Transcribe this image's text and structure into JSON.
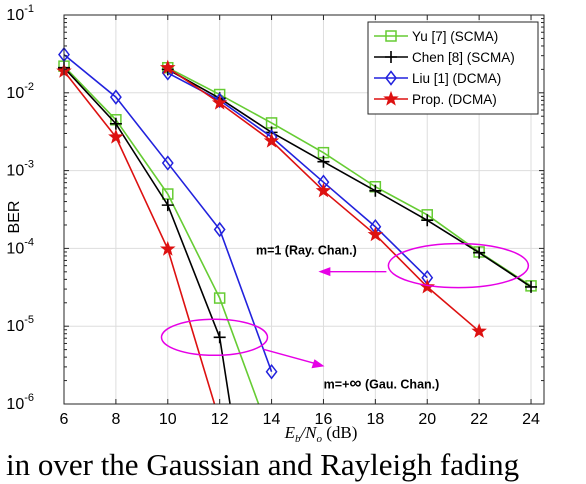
{
  "chart_data": {
    "type": "line",
    "ylabel": "BER",
    "xlabel_main": "E",
    "xlabel_sub1": "b",
    "xlabel_div": "/N",
    "xlabel_sub2": "o",
    "xlabel_unit": " (dB)",
    "x_ticks": [
      6,
      8,
      10,
      12,
      14,
      16,
      18,
      20,
      22,
      24
    ],
    "x_tick_labels": [
      "6",
      "8",
      "10",
      "12",
      "14",
      "16",
      "18",
      "20",
      "22",
      "24"
    ],
    "xlim": [
      6,
      24.5
    ],
    "yscale": "log",
    "ylim": [
      1e-06,
      0.1
    ],
    "y_tick_labels": [
      {
        "base": "10",
        "exp": "-1",
        "value": 0.1
      },
      {
        "base": "10",
        "exp": "-2",
        "value": 0.01
      },
      {
        "base": "10",
        "exp": "-3",
        "value": 0.001
      },
      {
        "base": "10",
        "exp": "-4",
        "value": 0.0001
      },
      {
        "base": "10",
        "exp": "-5",
        "value": 1e-05
      },
      {
        "base": "10",
        "exp": "-6",
        "value": 1e-06
      }
    ],
    "grid": true,
    "legend_position": "top-right",
    "series": [
      {
        "name": "Yu [7] (SCMA)",
        "color": "#66cc33",
        "marker": "square",
        "curves": [
          [
            [
              6,
              0.022
            ],
            [
              8,
              0.0045
            ],
            [
              10,
              0.0005
            ],
            [
              12,
              2.3e-05
            ],
            [
              13.5,
              1e-06
            ]
          ],
          [
            [
              10,
              0.021
            ],
            [
              12,
              0.0095
            ],
            [
              14,
              0.0041
            ],
            [
              16,
              0.0017
            ],
            [
              18,
              0.00062
            ],
            [
              20,
              0.00027
            ],
            [
              22,
              9e-05
            ],
            [
              24,
              3.3e-05
            ]
          ]
        ],
        "marker_points": [
          [
            6,
            0.022
          ],
          [
            8,
            0.0045
          ],
          [
            10,
            0.0005
          ],
          [
            12,
            2.3e-05
          ],
          [
            10,
            0.021
          ],
          [
            12,
            0.0095
          ],
          [
            14,
            0.0041
          ],
          [
            16,
            0.0017
          ],
          [
            18,
            0.00062
          ],
          [
            20,
            0.00027
          ],
          [
            22,
            9e-05
          ],
          [
            24,
            3.3e-05
          ]
        ]
      },
      {
        "name": "Chen [8] (SCMA)",
        "color": "#000000",
        "marker": "plus",
        "curves": [
          [
            [
              6,
              0.021
            ],
            [
              8,
              0.004
            ],
            [
              10,
              0.00036
            ],
            [
              12,
              7.2e-06
            ],
            [
              12.4,
              1e-06
            ]
          ],
          [
            [
              10,
              0.02
            ],
            [
              12,
              0.0085
            ],
            [
              14,
              0.0031
            ],
            [
              16,
              0.0013
            ],
            [
              18,
              0.00055
            ],
            [
              20,
              0.00023
            ],
            [
              22,
              8.8e-05
            ],
            [
              24,
              3.2e-05
            ]
          ]
        ],
        "marker_points": [
          [
            6,
            0.021
          ],
          [
            8,
            0.004
          ],
          [
            10,
            0.00036
          ],
          [
            12,
            7.2e-06
          ],
          [
            10,
            0.02
          ],
          [
            12,
            0.0085
          ],
          [
            14,
            0.0031
          ],
          [
            16,
            0.0013
          ],
          [
            18,
            0.00055
          ],
          [
            20,
            0.00023
          ],
          [
            22,
            8.8e-05
          ],
          [
            24,
            3.2e-05
          ]
        ]
      },
      {
        "name": "Liu [1] (DCMA)",
        "color": "#2222dd",
        "marker": "diamond",
        "curves": [
          [
            [
              6,
              0.031
            ],
            [
              8,
              0.0088
            ],
            [
              10,
              0.00125
            ],
            [
              12,
              0.000175
            ],
            [
              14,
              2.6e-06
            ]
          ],
          [
            [
              10,
              0.018
            ],
            [
              12,
              0.008
            ],
            [
              14,
              0.0027
            ],
            [
              16,
              0.00071
            ],
            [
              18,
              0.00019
            ],
            [
              20,
              4.2e-05
            ]
          ]
        ],
        "marker_points": [
          [
            6,
            0.031
          ],
          [
            8,
            0.0088
          ],
          [
            10,
            0.00125
          ],
          [
            12,
            0.000175
          ],
          [
            14,
            2.6e-06
          ],
          [
            10,
            0.018
          ],
          [
            12,
            0.008
          ],
          [
            14,
            0.0027
          ],
          [
            16,
            0.00071
          ],
          [
            18,
            0.00019
          ],
          [
            20,
            4.2e-05
          ]
        ]
      },
      {
        "name": "Prop. (DCMA)",
        "color": "#dd1111",
        "marker": "star",
        "curves": [
          [
            [
              6,
              0.019
            ],
            [
              8,
              0.0027
            ],
            [
              10,
              9.8e-05
            ],
            [
              11.8,
              1e-06
            ]
          ],
          [
            [
              10,
              0.021
            ],
            [
              12,
              0.0074
            ],
            [
              14,
              0.0024
            ],
            [
              16,
              0.00055
            ],
            [
              18,
              0.00015
            ],
            [
              20,
              3.2e-05
            ],
            [
              22,
              8.6e-06
            ]
          ]
        ],
        "marker_points": [
          [
            6,
            0.019
          ],
          [
            8,
            0.0027
          ],
          [
            10,
            9.8e-05
          ],
          [
            10,
            0.021
          ],
          [
            12,
            0.0074
          ],
          [
            14,
            0.0024
          ],
          [
            16,
            0.00055
          ],
          [
            18,
            0.00015
          ],
          [
            20,
            3.2e-05
          ],
          [
            22,
            8.6e-06
          ]
        ]
      }
    ],
    "annotations": [
      {
        "text": "m=1 (Ray. Chan.)",
        "ellipse_center": [
          21.2,
          6e-05
        ]
      },
      {
        "text_before": "m=+",
        "symbol": "∞",
        "text_after": " (Gau. Chan.)",
        "ellipse_center": [
          11.8,
          7.2e-06
        ]
      }
    ]
  },
  "caption": "in over the Gaussian and Rayleigh fading"
}
